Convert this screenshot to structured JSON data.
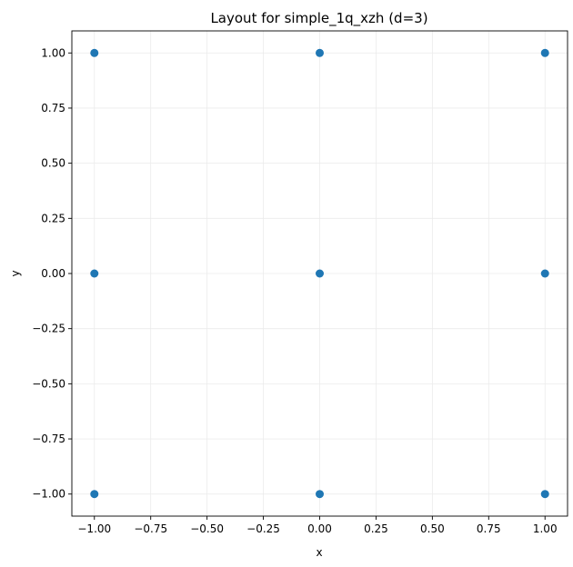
{
  "chart_data": {
    "type": "scatter",
    "title": "Layout for simple_1q_xzh (d=3)",
    "xlabel": "x",
    "ylabel": "y",
    "xlim": [
      -1.1,
      1.1
    ],
    "ylim": [
      -1.1,
      1.1
    ],
    "xticks": [
      -1.0,
      -0.75,
      -0.5,
      -0.25,
      0.0,
      0.25,
      0.5,
      0.75,
      1.0
    ],
    "yticks": [
      -1.0,
      -0.75,
      -0.5,
      -0.25,
      0.0,
      0.25,
      0.5,
      0.75,
      1.0
    ],
    "xtick_labels": [
      "−1.00",
      "−0.75",
      "−0.50",
      "−0.25",
      "0.00",
      "0.25",
      "0.50",
      "0.75",
      "1.00"
    ],
    "ytick_labels": [
      "−1.00",
      "−0.75",
      "−0.50",
      "−0.25",
      "0.00",
      "0.25",
      "0.50",
      "0.75",
      "1.00"
    ],
    "grid": true,
    "marker_color": "#1f77b4",
    "points": [
      {
        "x": -1,
        "y": 1
      },
      {
        "x": 0,
        "y": 1
      },
      {
        "x": 1,
        "y": 1
      },
      {
        "x": -1,
        "y": 0
      },
      {
        "x": 0,
        "y": 0
      },
      {
        "x": 1,
        "y": 0
      },
      {
        "x": -1,
        "y": -1
      },
      {
        "x": 0,
        "y": -1
      },
      {
        "x": 1,
        "y": -1
      }
    ]
  }
}
